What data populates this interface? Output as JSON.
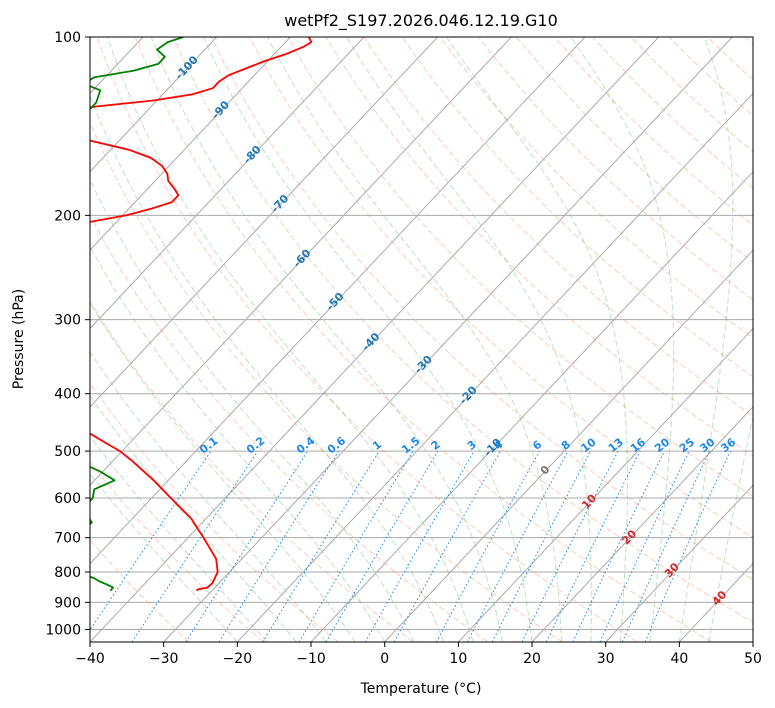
{
  "chart_data": {
    "type": "skew-t",
    "title": "wetPf2_S197.2026.046.12.19.G10",
    "xlabel": "Temperature (°C)",
    "ylabel": "Pressure (hPa)",
    "xlim": [
      -40,
      50
    ],
    "ylim": [
      1050,
      100
    ],
    "y_scale": "log",
    "x_ticks": [
      -40,
      -30,
      -20,
      -10,
      0,
      10,
      20,
      30,
      40,
      50
    ],
    "x_tick_labels": [
      "−40",
      "−30",
      "−20",
      "−10",
      "0",
      "10",
      "20",
      "30",
      "40",
      "50"
    ],
    "y_ticks": [
      100,
      200,
      300,
      400,
      500,
      600,
      700,
      800,
      900,
      1000
    ],
    "y_tick_labels": [
      "100",
      "200",
      "300",
      "400",
      "500",
      "600",
      "700",
      "800",
      "900",
      "1000"
    ],
    "grid": true,
    "isotherm_labels": [
      -100,
      -90,
      -80,
      -70,
      -60,
      -50,
      -40,
      -30,
      -20,
      -10,
      0,
      10,
      20,
      30,
      40
    ],
    "mixing_ratio_labels": [
      "0.1",
      "0.2",
      "0.4",
      "0.6",
      "1",
      "1.5",
      "2",
      "3",
      "4",
      "6",
      "8",
      "10",
      "13",
      "16",
      "20",
      "25",
      "30",
      "36"
    ],
    "mixing_ratio_values": [
      0.1,
      0.2,
      0.4,
      0.6,
      1,
      1.5,
      2,
      3,
      4,
      6,
      8,
      10,
      13,
      16,
      20,
      25,
      30,
      36
    ],
    "series": [
      {
        "role": "temperature",
        "color": "#ff0000",
        "p": [
          860,
          855,
          850,
          835,
          800,
          760,
          700,
          650,
          600,
          560,
          520,
          500,
          480,
          460,
          440,
          420,
          405,
          395,
          385,
          375,
          365,
          355,
          345,
          335,
          330,
          320,
          310,
          300,
          290,
          280,
          270,
          260,
          250,
          245,
          240,
          235,
          230,
          225,
          220,
          215,
          210,
          205,
          200,
          195,
          190,
          185,
          180,
          175,
          170,
          165,
          160,
          155,
          150,
          145,
          140,
          137,
          134,
          131,
          128,
          125,
          122,
          119,
          116,
          113,
          110,
          107,
          104,
          102,
          100
        ],
        "t": [
          -32.1,
          -32.0,
          -31.0,
          -30.9,
          -31.6,
          -33.5,
          -37.9,
          -42.0,
          -47.4,
          -52.0,
          -57.3,
          -60.3,
          -64.1,
          -68.0,
          -71.5,
          -74.8,
          -77.0,
          -78.0,
          -79.7,
          -81.8,
          -84.8,
          -88.5,
          -92.0,
          -96.0,
          -99.5,
          -103.5,
          -107.5,
          -111.5,
          -115.5,
          -120.0,
          -124.0,
          -127.3,
          -129.3,
          -129.0,
          -126.5,
          -123.0,
          -119.0,
          -114.5,
          -109.5,
          -104.0,
          -99.0,
          -93.5,
          -89.5,
          -87.0,
          -85.0,
          -85.0,
          -86.5,
          -88.2,
          -89.3,
          -91.0,
          -93.5,
          -97.5,
          -103.5,
          -108.5,
          -111.5,
          -114.5,
          -112.5,
          -107.5,
          -100.5,
          -96.0,
          -94.0,
          -94.0,
          -93.5,
          -92.0,
          -90.5,
          -88.5,
          -87.0,
          -86.5,
          -87.5
        ]
      },
      {
        "role": "dewpoint",
        "color": "#008000",
        "p": [
          860,
          850,
          840,
          830,
          820,
          810,
          800,
          790,
          780,
          770,
          760,
          740,
          720,
          700,
          680,
          660,
          640,
          620,
          600,
          580,
          560,
          540,
          520,
          500,
          480,
          460,
          440,
          420,
          400,
          390,
          380,
          375,
          370,
          365,
          360,
          355,
          350,
          345,
          340,
          335,
          330,
          320,
          310,
          300,
          290,
          280,
          270,
          260,
          250,
          245,
          240,
          235,
          230,
          225,
          220,
          215,
          210,
          205,
          200,
          197,
          194,
          191,
          188,
          185,
          180,
          175,
          170,
          165,
          160,
          155,
          150,
          145,
          140,
          135,
          132,
          129,
          126,
          123,
          120,
          117,
          114,
          111,
          108,
          105,
          102,
          100
        ],
        "t": [
          -43.8,
          -43.8,
          -45.0,
          -46.4,
          -47.5,
          -49.1,
          -50.0,
          -51.2,
          -51.2,
          -51.1,
          -51.4,
          -52.6,
          -52.8,
          -54.9,
          -55.3,
          -55.0,
          -56.6,
          -57.9,
          -58.0,
          -58.9,
          -57.3,
          -60.6,
          -64.8,
          -68.5,
          -71.0,
          -73.5,
          -77.0,
          -82.0,
          -88.5,
          -101.0,
          -116.0,
          -124.0,
          -124.0,
          -118.0,
          -112.0,
          -106.0,
          -100.0,
          -96.5,
          -96.0,
          -98.5,
          -102.0,
          -107.0,
          -111.0,
          -116.0,
          -120.5,
          -125.0,
          -130.0,
          -134.0,
          -135.0,
          -135.0,
          -132.0,
          -125.0,
          -117.5,
          -110.5,
          -105.0,
          -100.5,
          -99.0,
          -99.5,
          -106.5,
          -113.0,
          -120.0,
          -125.0,
          -125.0,
          -122.0,
          -117.0,
          -113.5,
          -113.0,
          -113.0,
          -113.0,
          -114.5,
          -115.5,
          -116.0,
          -114.5,
          -111.0,
          -108.0,
          -108.0,
          -108.5,
          -109.0,
          -112.0,
          -111.5,
          -107.0,
          -104.5,
          -104.5,
          -106.5,
          -106.0,
          -104.5
        ]
      }
    ]
  },
  "colors": {
    "temperature": "#ff0000",
    "dewpoint": "#008000",
    "isotherm_label": "#1f77b4",
    "mixing_ratio": "#1e88e5",
    "moist_adiabat": "#2ca02c",
    "dry_adiabat": "#ff7f50",
    "grid": "#aaaaaa"
  }
}
